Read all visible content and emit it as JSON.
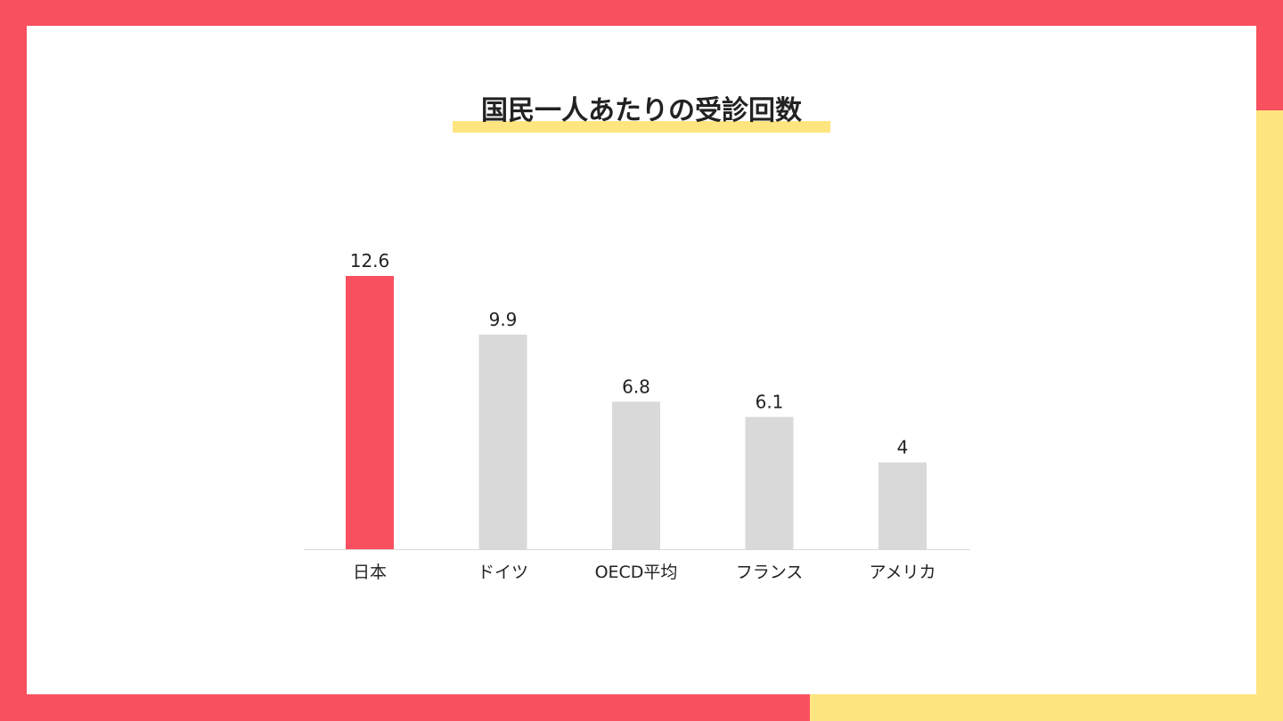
{
  "slide": {
    "title": "国民一人あたりの受診回数"
  },
  "colors": {
    "frame_red": "#f9505f",
    "frame_yellow": "#ffe57f",
    "highlight_bar": "#f9505f",
    "default_bar": "#d9d9d9",
    "text": "#222222"
  },
  "chart_data": {
    "type": "bar",
    "title": "国民一人あたりの受診回数",
    "categories": [
      "日本",
      "ドイツ",
      "OECD平均",
      "フランス",
      "アメリカ"
    ],
    "values": [
      12.6,
      9.9,
      6.8,
      6.1,
      4
    ],
    "data_labels": [
      "12.6",
      "9.9",
      "6.8",
      "6.1",
      "4"
    ],
    "highlight_index": 0,
    "ylim": [
      0,
      12.6
    ],
    "xlabel": "",
    "ylabel": "",
    "grid": false,
    "legend": "none"
  }
}
